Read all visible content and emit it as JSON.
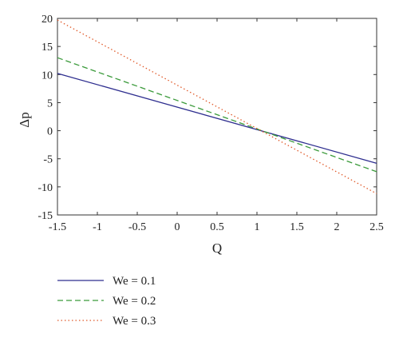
{
  "chart_data": {
    "type": "line",
    "xlabel": "Q",
    "ylabel": "Δp",
    "xlim": [
      -1.5,
      2.5
    ],
    "ylim": [
      -15,
      20
    ],
    "xticks": [
      "-1.5",
      "-1",
      "-0.5",
      "0",
      "0.5",
      "1",
      "1.5",
      "2",
      "2.5"
    ],
    "yticks": [
      "-15",
      "-10",
      "-5",
      "0",
      "5",
      "10",
      "15",
      "20"
    ],
    "grid": false,
    "legend_position": "below",
    "series": [
      {
        "name": "We = 0.1",
        "color": "#2e2e8f",
        "dash": "solid",
        "x": [
          -1.5,
          2.5
        ],
        "y": [
          10.2,
          -5.8
        ]
      },
      {
        "name": "We = 0.2",
        "color": "#3a9a3a",
        "dash": "dashed",
        "x": [
          -1.5,
          2.5
        ],
        "y": [
          13.0,
          -7.3
        ]
      },
      {
        "name": "We = 0.3",
        "color": "#e05a2a",
        "dash": "dotted",
        "x": [
          -1.5,
          2.5
        ],
        "y": [
          19.7,
          -11.2
        ]
      }
    ]
  }
}
